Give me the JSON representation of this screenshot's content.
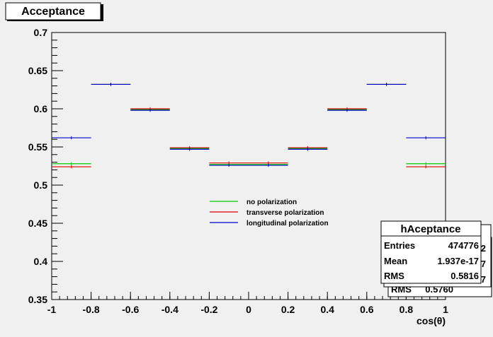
{
  "chart_data": {
    "type": "step",
    "title": "Acceptance",
    "xlabel": "cos(θ)",
    "ylabel": "",
    "xlim": [
      -1,
      1
    ],
    "ylim": [
      0.35,
      0.7
    ],
    "x_ticks": [
      "-1",
      "-0.8",
      "-0.6",
      "-0.4",
      "-0.2",
      "0",
      "0.2",
      "0.4",
      "0.6",
      "0.8",
      "1"
    ],
    "y_ticks": [
      "0.35",
      "0.4",
      "0.45",
      "0.5",
      "0.55",
      "0.6",
      "0.65",
      "0.7"
    ],
    "bin_edges": [
      -1,
      -0.8,
      -0.6,
      -0.4,
      -0.2,
      0,
      0.2,
      0.4,
      0.6,
      0.8,
      1
    ],
    "series": [
      {
        "name": "no polarization",
        "color": "#00cc00",
        "values": [
          0.528,
          0.632,
          0.599,
          0.548,
          0.527,
          0.527,
          0.548,
          0.599,
          0.632,
          0.528
        ]
      },
      {
        "name": "transverse polarization",
        "color": "#dd0000",
        "values": [
          0.524,
          0.632,
          0.6,
          0.549,
          0.529,
          0.529,
          0.549,
          0.6,
          0.632,
          0.524
        ]
      },
      {
        "name": "longitudinal polarization",
        "color": "#0000cc",
        "values": [
          0.562,
          0.632,
          0.598,
          0.547,
          0.526,
          0.526,
          0.547,
          0.598,
          0.632,
          0.562
        ]
      }
    ],
    "error_bars": [
      0.002,
      0.002,
      0.002,
      0.002,
      0.002,
      0.002,
      0.002,
      0.002,
      0.002,
      0.002
    ]
  },
  "stats": {
    "back_boxes": [
      {
        "rows": [
          {
            "value": "2"
          },
          {
            "value": "7"
          },
          {
            "value": "7"
          }
        ]
      },
      {
        "rows": [
          {
            "value": ""
          },
          {
            "value": ""
          },
          {
            "label": "RMS",
            "value": "0.5760"
          }
        ]
      }
    ],
    "front": {
      "title": "hAceptance",
      "rows": [
        {
          "label": "Entries",
          "value": "474776"
        },
        {
          "label": "Mean",
          "value": "1.937e-17"
        },
        {
          "label": "RMS",
          "value": "0.5816"
        }
      ]
    }
  }
}
